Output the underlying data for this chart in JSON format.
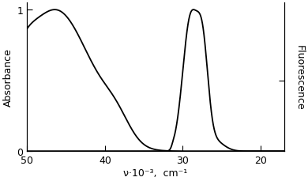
{
  "xlabel": "ν·10⁻³,  cm⁻¹",
  "ylabel_left": "Absorbance",
  "ylabel_right": "Fluorescence",
  "xlim": [
    50,
    17
  ],
  "ylim": [
    0,
    1.05
  ],
  "xticks": [
    50,
    40,
    30,
    20
  ],
  "yticks_left": [
    0,
    1
  ],
  "background_color": "#ffffff",
  "line_color": "#000000",
  "linewidth": 1.3
}
